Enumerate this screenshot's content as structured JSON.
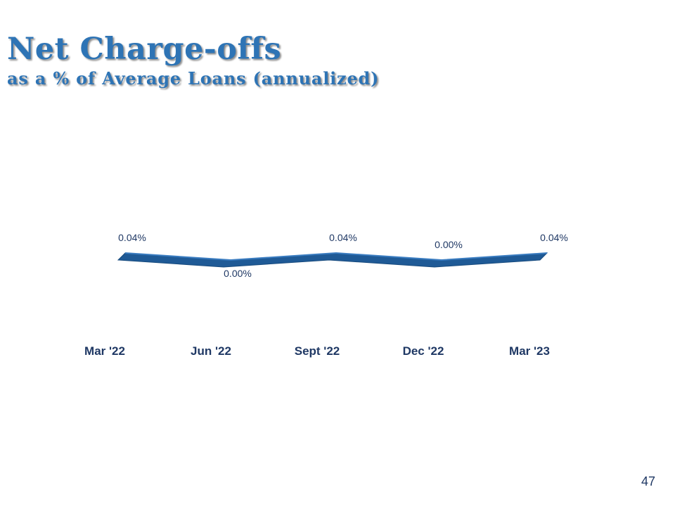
{
  "slide": {
    "title": "Net Charge-offs",
    "subtitle": "as a % of Average Loans (annualized)",
    "page_number": "47"
  },
  "colors": {
    "title": "#2e74b5",
    "line": "#1f5a96",
    "line_top": "#3a7cc0",
    "labels": "#1f3864"
  },
  "chart_data": {
    "type": "line",
    "title": "",
    "xlabel": "",
    "ylabel": "",
    "categories": [
      "Mar '22",
      "Jun '22",
      "Sept '22",
      "Dec '22",
      "Mar '23"
    ],
    "series": [
      {
        "values": [
          0.04,
          0.0,
          0.04,
          0.0,
          0.04
        ],
        "data_labels": [
          "0.04%",
          "0.00%",
          "0.04%",
          "0.00%",
          "0.04%"
        ]
      }
    ],
    "ylim": [
      0,
      0.04
    ],
    "grid": false,
    "legend": "none",
    "style": "3d-ribbon"
  }
}
